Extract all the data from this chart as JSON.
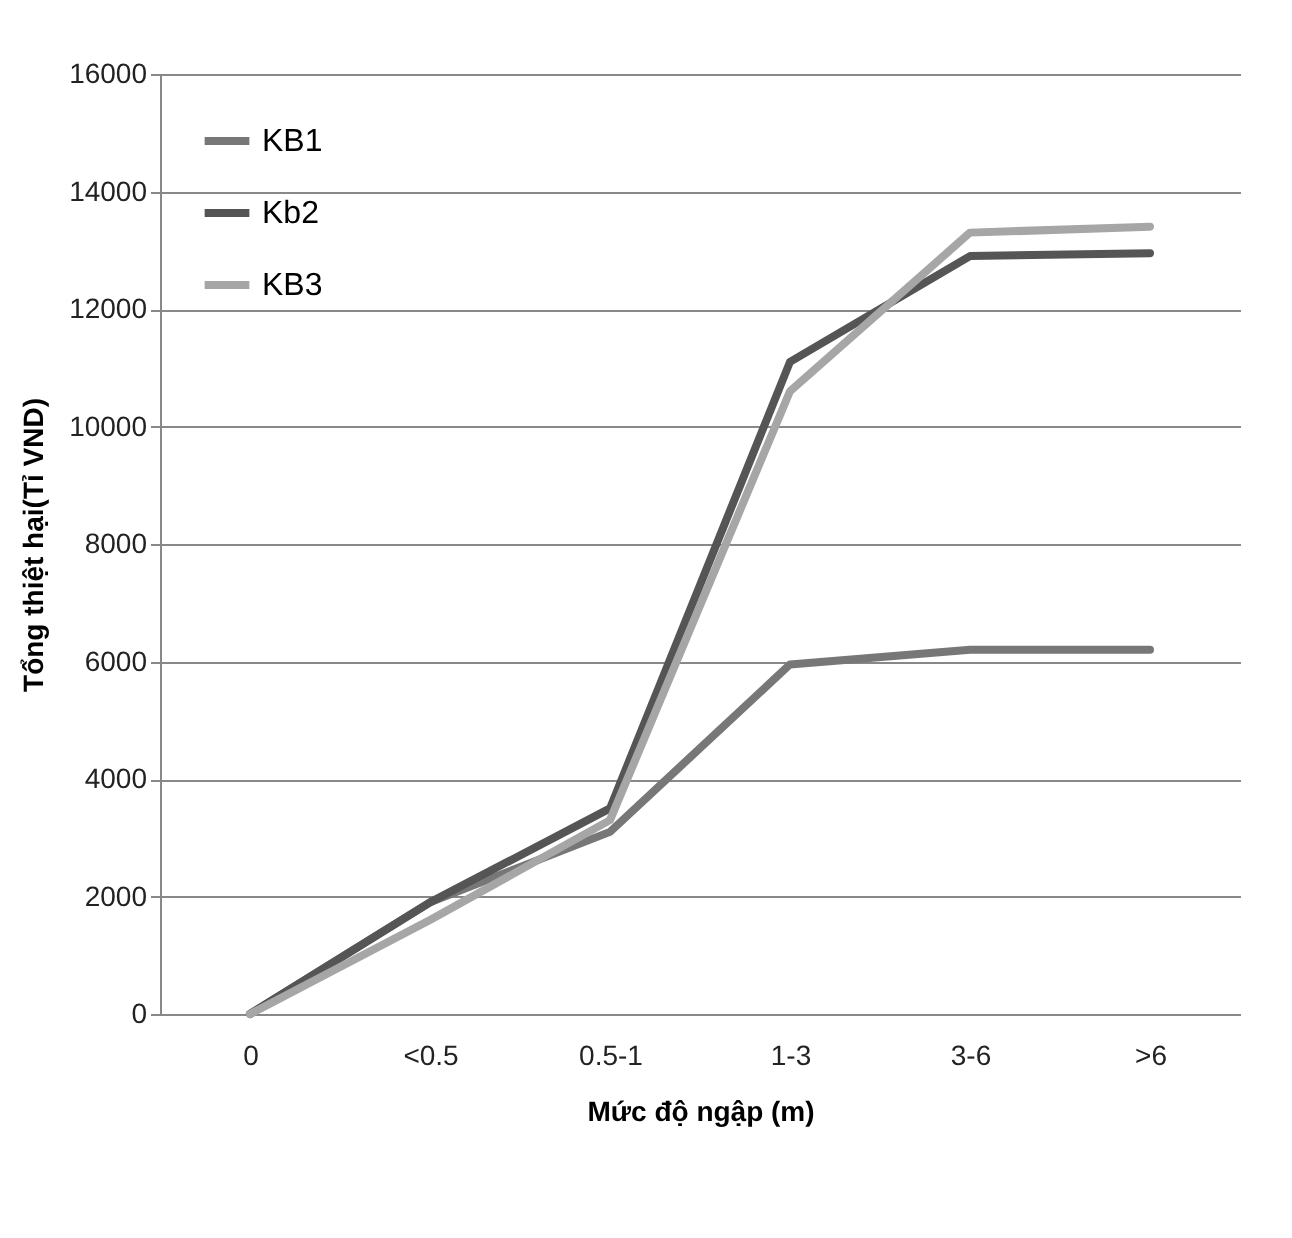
{
  "chart_data": {
    "type": "line",
    "xlabel": "Mức độ ngập (m)",
    "ylabel": "Tổng thiệt hại(Tỉ VND)",
    "categories": [
      "0",
      "<0.5",
      "0.5-1",
      "1-3",
      "3-6",
      ">6"
    ],
    "series": [
      {
        "name": "KB1",
        "color": "#777777",
        "values": [
          0,
          1900,
          3100,
          5950,
          6200,
          6200
        ]
      },
      {
        "name": "Kb2",
        "color": "#555555",
        "values": [
          0,
          1900,
          3500,
          11100,
          12900,
          12950
        ]
      },
      {
        "name": "KB3",
        "color": "#a6a6a6",
        "values": [
          0,
          1600,
          3300,
          10600,
          13300,
          13400
        ]
      }
    ],
    "ylim": [
      0,
      16000
    ],
    "yticks": [
      0,
      2000,
      4000,
      6000,
      8000,
      10000,
      12000,
      14000,
      16000
    ],
    "grid": "y",
    "legend": "top left",
    "marker": "none",
    "line_style": "solid"
  }
}
